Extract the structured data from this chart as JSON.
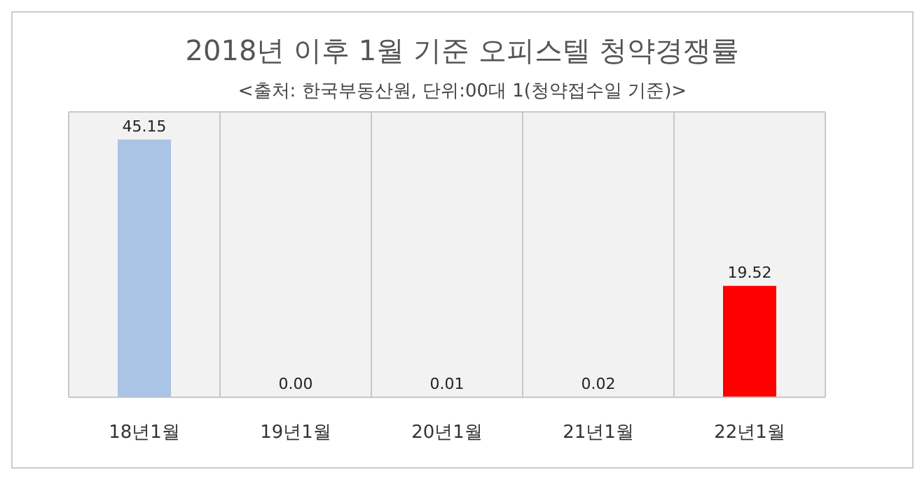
{
  "chart_data": {
    "type": "bar",
    "title": "2018년 이후 1월 기준 오피스텔 청약경쟁률",
    "subtitle": "<출처: 한국부동산원, 단위:00대 1(청약접수일 기준)>",
    "categories": [
      "18년1월",
      "19년1월",
      "20년1월",
      "21년1월",
      "22년1월"
    ],
    "values": [
      45.15,
      0.0,
      0.01,
      0.02,
      19.52
    ],
    "value_labels": [
      "45.15",
      "0.00",
      "0.01",
      "0.02",
      "19.52"
    ],
    "colors": [
      "#a9c4e4",
      "#a9c4e4",
      "#a9c4e4",
      "#a9c4e4",
      "#ff0000"
    ],
    "ylim": [
      0,
      50
    ],
    "tick_labels": "x",
    "grid": true
  }
}
